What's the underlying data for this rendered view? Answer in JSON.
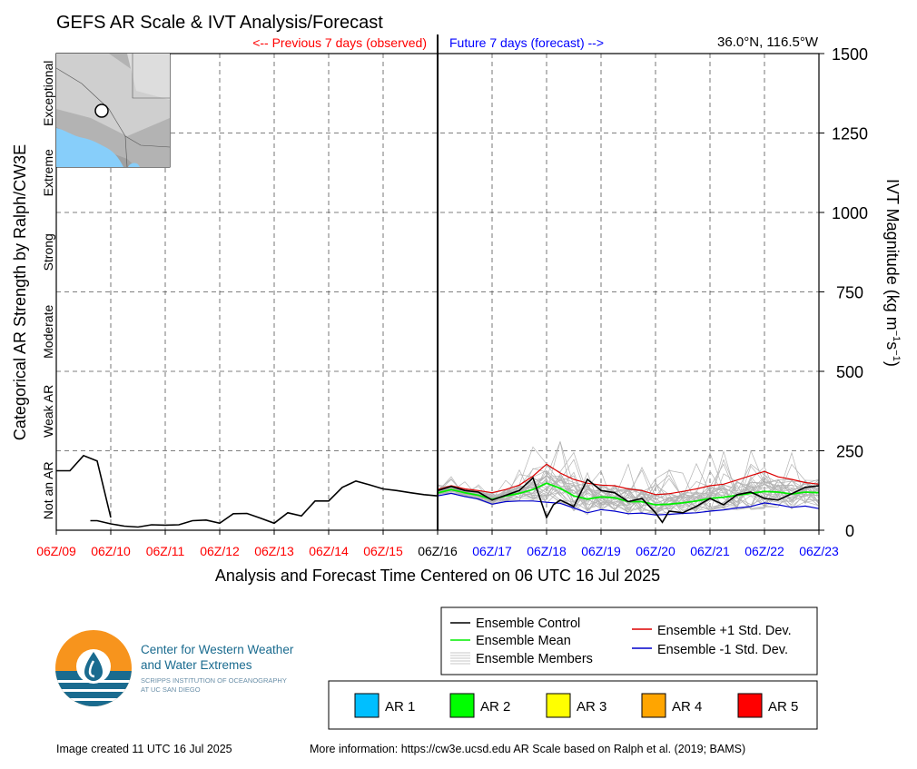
{
  "header": {
    "title": "GEFS AR Scale & IVT Analysis/Forecast",
    "previous_label": "<-- Previous 7 days (observed)",
    "future_label": "Future 7 days (forecast) -->",
    "location": "36.0°N, 116.5°W"
  },
  "colors": {
    "observed": "#ff0000",
    "forecast": "#0000ff",
    "control": "#000000",
    "mean": "#00ee00",
    "plus_std": "#dd0000",
    "minus_std": "#0000cc",
    "members": "#b4b4b4",
    "ocean": "#87cefa"
  },
  "chart_data": {
    "type": "line",
    "title": "GEFS AR Scale & IVT Analysis/Forecast",
    "xlabel": "Analysis and Forecast Time Centered on 06 UTC 16 Jul 2025",
    "ylabel_left": "Categorical AR Strength by Ralph/CW3E",
    "ylabel_right": {
      "main": "IVT Magnitude (kg m",
      "sup1": "−1",
      "mid": "s",
      "sup2": "−1",
      "end": ")"
    },
    "ylim": [
      0,
      1500
    ],
    "xlim": [
      0,
      14
    ],
    "y_ticks": [
      "0",
      "250",
      "500",
      "750",
      "1000",
      "1250",
      "1500"
    ],
    "y_tick_values": [
      0,
      250,
      500,
      750,
      1000,
      1250,
      1500
    ],
    "x_ticks": [
      {
        "label": "06Z/09",
        "period": "observed"
      },
      {
        "label": "06Z/10",
        "period": "observed"
      },
      {
        "label": "06Z/11",
        "period": "observed"
      },
      {
        "label": "06Z/12",
        "period": "observed"
      },
      {
        "label": "06Z/13",
        "period": "observed"
      },
      {
        "label": "06Z/14",
        "period": "observed"
      },
      {
        "label": "06Z/15",
        "period": "observed"
      },
      {
        "label": "06Z/16",
        "period": "now"
      },
      {
        "label": "06Z/17",
        "period": "forecast"
      },
      {
        "label": "06Z/18",
        "period": "forecast"
      },
      {
        "label": "06Z/19",
        "period": "forecast"
      },
      {
        "label": "06Z/20",
        "period": "forecast"
      },
      {
        "label": "06Z/21",
        "period": "forecast"
      },
      {
        "label": "06Z/22",
        "period": "forecast"
      },
      {
        "label": "06Z/23",
        "period": "forecast"
      }
    ],
    "categories": [
      {
        "label": "Not an AR",
        "range": [
          0,
          250
        ]
      },
      {
        "label": "Weak AR",
        "range": [
          250,
          500
        ]
      },
      {
        "label": "Moderate",
        "range": [
          500,
          750
        ]
      },
      {
        "label": "Strong",
        "range": [
          750,
          1000
        ]
      },
      {
        "label": "Extreme",
        "range": [
          1000,
          1250
        ]
      },
      {
        "label": "Exceptional",
        "range": [
          1250,
          1500
        ]
      }
    ],
    "grid": true,
    "series": {
      "observed_segments": [
        {
          "x": [
            0,
            0.25,
            0.5,
            0.75,
            1.0
          ],
          "y": [
            187,
            187,
            235,
            218,
            40
          ]
        },
        {
          "x": [
            0.625,
            0.75,
            1.0,
            1.25,
            1.5,
            1.75,
            2.0,
            2.25,
            2.5,
            2.75,
            3.0,
            3.25,
            3.5,
            3.75,
            4.0,
            4.25,
            4.5,
            4.75,
            5.0,
            5.25,
            5.5,
            5.75,
            6.0,
            6.25,
            6.5,
            6.75,
            7.0
          ],
          "y": [
            30,
            30,
            20,
            13,
            10,
            17,
            16,
            17,
            30,
            32,
            22,
            52,
            53,
            38,
            22,
            55,
            45,
            92,
            92,
            135,
            155,
            143,
            130,
            125,
            118,
            112,
            108
          ]
        }
      ],
      "control": {
        "name": "Ensemble Control",
        "x": [
          7.0,
          7.25,
          7.5,
          7.75,
          8.0,
          8.25,
          8.5,
          8.75,
          9.0,
          9.125,
          9.25,
          9.5,
          9.75,
          10.0,
          10.25,
          10.5,
          10.75,
          11.0,
          11.125,
          11.25,
          11.5,
          11.75,
          12.0,
          12.25,
          12.5,
          12.75,
          13.0,
          13.25,
          13.5,
          13.75,
          14.0
        ],
        "y": [
          125,
          138,
          125,
          120,
          95,
          110,
          125,
          165,
          40,
          80,
          95,
          75,
          160,
          125,
          118,
          90,
          100,
          55,
          25,
          60,
          55,
          75,
          100,
          80,
          112,
          120,
          100,
          95,
          115,
          135,
          140
        ]
      },
      "mean": {
        "name": "Ensemble Mean",
        "x": [
          7,
          7.25,
          7.5,
          7.75,
          8,
          8.25,
          8.5,
          8.75,
          9,
          9.25,
          9.5,
          9.75,
          10,
          10.25,
          10.5,
          10.75,
          11,
          11.25,
          11.5,
          11.75,
          12,
          12.25,
          12.5,
          12.75,
          13,
          13.25,
          13.5,
          13.75,
          14
        ],
        "y": [
          117,
          128,
          118,
          110,
          97,
          108,
          116,
          128,
          148,
          132,
          108,
          98,
          105,
          102,
          90,
          90,
          80,
          82,
          86,
          92,
          100,
          104,
          110,
          116,
          122,
          120,
          114,
          120,
          118
        ]
      },
      "plus_std": {
        "name": "Ensemble +1 Std. Dev.",
        "x": [
          7,
          7.25,
          7.5,
          7.75,
          8,
          8.25,
          8.5,
          8.75,
          9,
          9.25,
          9.5,
          9.75,
          10,
          10.25,
          10.5,
          10.75,
          11,
          11.25,
          11.5,
          11.75,
          12,
          12.25,
          12.5,
          12.75,
          13,
          13.25,
          13.5,
          13.75,
          14
        ],
        "y": [
          128,
          140,
          130,
          125,
          118,
          128,
          142,
          170,
          208,
          180,
          160,
          148,
          142,
          140,
          130,
          125,
          112,
          115,
          122,
          130,
          140,
          145,
          158,
          172,
          185,
          168,
          160,
          150,
          145
        ]
      },
      "minus_std": {
        "name": "Ensemble -1 Std. Dev.",
        "x": [
          7,
          7.25,
          7.5,
          7.75,
          8,
          8.25,
          8.5,
          8.75,
          9,
          9.25,
          9.5,
          9.75,
          10,
          10.25,
          10.5,
          10.75,
          11,
          11.25,
          11.5,
          11.75,
          12,
          12.25,
          12.5,
          12.75,
          13,
          13.25,
          13.5,
          13.75,
          14
        ],
        "y": [
          108,
          116,
          106,
          98,
          82,
          90,
          92,
          92,
          88,
          85,
          70,
          55,
          65,
          60,
          52,
          54,
          48,
          50,
          53,
          55,
          60,
          64,
          70,
          75,
          86,
          80,
          72,
          76,
          68
        ]
      }
    }
  },
  "legend": {
    "control": "Ensemble Control",
    "mean": "Ensemble Mean",
    "members": "Ensemble Members",
    "plus_std": "Ensemble +1 Std. Dev.",
    "minus_std": "Ensemble -1 Std. Dev."
  },
  "ar_scale": [
    {
      "label": "AR 1",
      "color": "#00bfff"
    },
    {
      "label": "AR 2",
      "color": "#00ff00"
    },
    {
      "label": "AR 3",
      "color": "#ffff00"
    },
    {
      "label": "AR 4",
      "color": "#ffa500"
    },
    {
      "label": "AR 5",
      "color": "#ff0000"
    }
  ],
  "logo": {
    "line1": "Center for Western Weather",
    "line2": "and Water Extremes",
    "line3": "SCRIPPS INSTITUTION OF OCEANOGRAPHY",
    "line4": "AT UC SAN DIEGO",
    "orange": "#f7941d",
    "teal": "#1a6b8f"
  },
  "footer": {
    "created": "Image created 11 UTC 16 Jul 2025",
    "more_info": "More information: https://cw3e.ucsd.edu AR Scale based on Ralph et al. (2019; BAMS)"
  }
}
